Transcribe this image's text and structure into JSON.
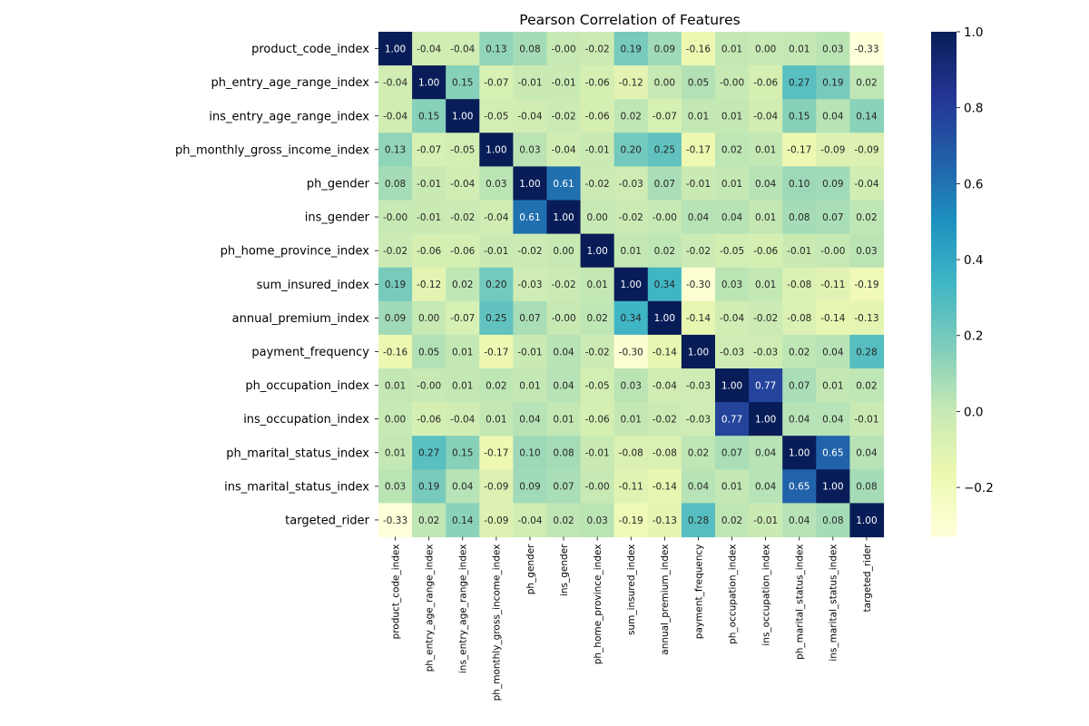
{
  "chart_data": {
    "type": "heatmap",
    "title": "Pearson Correlation of Features",
    "xlabel": "",
    "ylabel": "",
    "colormap": "YlGnBu",
    "labels": [
      "product_code_index",
      "ph_entry_age_range_index",
      "ins_entry_age_range_index",
      "ph_monthly_gross_income_index",
      "ph_gender",
      "ins_gender",
      "ph_home_province_index",
      "sum_insured_index",
      "annual_premium_index",
      "payment_frequency",
      "ph_occupation_index",
      "ins_occupation_index",
      "ph_marital_status_index",
      "ins_marital_status_index",
      "targeted_rider"
    ],
    "matrix": [
      [
        "1.00",
        "-0.04",
        "-0.04",
        "0.13",
        "0.08",
        "-0.00",
        "-0.02",
        "0.19",
        "0.09",
        "-0.16",
        "0.01",
        "0.00",
        "0.01",
        "0.03",
        "-0.33"
      ],
      [
        "-0.04",
        "1.00",
        "0.15",
        "-0.07",
        "-0.01",
        "-0.01",
        "-0.06",
        "-0.12",
        "0.00",
        "0.05",
        "-0.00",
        "-0.06",
        "0.27",
        "0.19",
        "0.02"
      ],
      [
        "-0.04",
        "0.15",
        "1.00",
        "-0.05",
        "-0.04",
        "-0.02",
        "-0.06",
        "0.02",
        "-0.07",
        "0.01",
        "0.01",
        "-0.04",
        "0.15",
        "0.04",
        "0.14"
      ],
      [
        "0.13",
        "-0.07",
        "-0.05",
        "1.00",
        "0.03",
        "-0.04",
        "-0.01",
        "0.20",
        "0.25",
        "-0.17",
        "0.02",
        "0.01",
        "-0.17",
        "-0.09",
        "-0.09"
      ],
      [
        "0.08",
        "-0.01",
        "-0.04",
        "0.03",
        "1.00",
        "0.61",
        "-0.02",
        "-0.03",
        "0.07",
        "-0.01",
        "0.01",
        "0.04",
        "0.10",
        "0.09",
        "-0.04"
      ],
      [
        "-0.00",
        "-0.01",
        "-0.02",
        "-0.04",
        "0.61",
        "1.00",
        "0.00",
        "-0.02",
        "-0.00",
        "0.04",
        "0.04",
        "0.01",
        "0.08",
        "0.07",
        "0.02"
      ],
      [
        "-0.02",
        "-0.06",
        "-0.06",
        "-0.01",
        "-0.02",
        "0.00",
        "1.00",
        "0.01",
        "0.02",
        "-0.02",
        "-0.05",
        "-0.06",
        "-0.01",
        "-0.00",
        "0.03"
      ],
      [
        "0.19",
        "-0.12",
        "0.02",
        "0.20",
        "-0.03",
        "-0.02",
        "0.01",
        "1.00",
        "0.34",
        "-0.30",
        "0.03",
        "0.01",
        "-0.08",
        "-0.11",
        "-0.19"
      ],
      [
        "0.09",
        "0.00",
        "-0.07",
        "0.25",
        "0.07",
        "-0.00",
        "0.02",
        "0.34",
        "1.00",
        "-0.14",
        "-0.04",
        "-0.02",
        "-0.08",
        "-0.14",
        "-0.13"
      ],
      [
        "-0.16",
        "0.05",
        "0.01",
        "-0.17",
        "-0.01",
        "0.04",
        "-0.02",
        "-0.30",
        "-0.14",
        "1.00",
        "-0.03",
        "-0.03",
        "0.02",
        "0.04",
        "0.28"
      ],
      [
        "0.01",
        "-0.00",
        "0.01",
        "0.02",
        "0.01",
        "0.04",
        "-0.05",
        "0.03",
        "-0.04",
        "-0.03",
        "1.00",
        "0.77",
        "0.07",
        "0.01",
        "0.02"
      ],
      [
        "0.00",
        "-0.06",
        "-0.04",
        "0.01",
        "0.04",
        "0.01",
        "-0.06",
        "0.01",
        "-0.02",
        "-0.03",
        "0.77",
        "1.00",
        "0.04",
        "0.04",
        "-0.01"
      ],
      [
        "0.01",
        "0.27",
        "0.15",
        "-0.17",
        "0.10",
        "0.08",
        "-0.01",
        "-0.08",
        "-0.08",
        "0.02",
        "0.07",
        "0.04",
        "1.00",
        "0.65",
        "0.04"
      ],
      [
        "0.03",
        "0.19",
        "0.04",
        "-0.09",
        "0.09",
        "0.07",
        "-0.00",
        "-0.11",
        "-0.14",
        "0.04",
        "0.01",
        "0.04",
        "0.65",
        "1.00",
        "0.08"
      ],
      [
        "-0.33",
        "0.02",
        "0.14",
        "-0.09",
        "-0.04",
        "0.02",
        "0.03",
        "-0.19",
        "-0.13",
        "0.28",
        "0.02",
        "-0.01",
        "0.04",
        "0.08",
        "1.00"
      ]
    ],
    "colorbar": {
      "range": [
        -0.33,
        1.0
      ],
      "ticks": [
        1.0,
        0.8,
        0.6,
        0.4,
        0.2,
        0.0,
        -0.2
      ],
      "tick_labels": [
        "1.0",
        "0.8",
        "0.6",
        "0.4",
        "0.2",
        "0.0",
        "−0.2"
      ]
    },
    "grid": false
  }
}
